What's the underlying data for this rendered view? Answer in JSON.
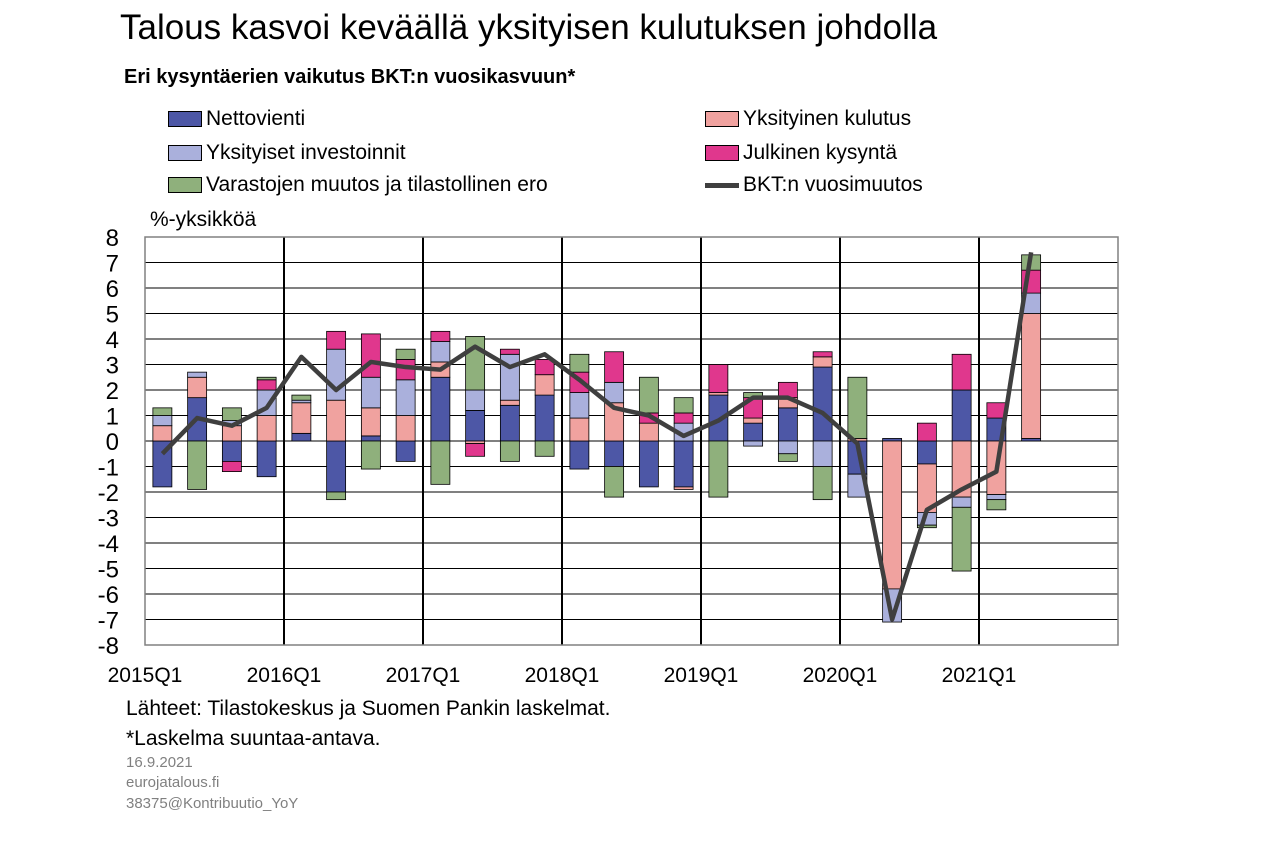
{
  "title": "Talous kasvoi keväällä yksityisen kulutuksen johdolla",
  "subtitle": "Eri kysyntäerien vaikutus BKT:n vuosikasvuun*",
  "colors": {
    "net_exports": "#4d57a6",
    "private_investment": "#aab0dc",
    "inventories": "#8fb07c",
    "private_consumption": "#f0a29f",
    "public_demand": "#e0378d",
    "gdp": "#3f3f3f"
  },
  "footnotes": {
    "sources": "Lähteet: Tilastokeskus ja Suomen Pankin laskelmat.",
    "note": "*Laskelma suuntaa-antava.",
    "date": "16.9.2021",
    "site": "eurojatalous.fi",
    "code": "38375@Kontribuutio_YoY"
  },
  "chart_data": {
    "type": "bar",
    "stacked": true,
    "ylabel": "%-yksikköä",
    "ylim": [
      -8,
      8
    ],
    "yticks": [
      8,
      7,
      6,
      5,
      4,
      3,
      2,
      1,
      0,
      -1,
      -2,
      -3,
      -4,
      -5,
      -6,
      -7,
      -8
    ],
    "x_tick_labels": [
      "2015Q1",
      "2016Q1",
      "2017Q1",
      "2018Q1",
      "2019Q1",
      "2020Q1",
      "2021Q1"
    ],
    "grid": true,
    "legend_position": "top",
    "categories": [
      "2015Q1",
      "2015Q2",
      "2015Q3",
      "2015Q4",
      "2016Q1",
      "2016Q2",
      "2016Q3",
      "2016Q4",
      "2017Q1",
      "2017Q2",
      "2017Q3",
      "2017Q4",
      "2018Q1",
      "2018Q2",
      "2018Q3",
      "2018Q4",
      "2019Q1",
      "2019Q2",
      "2019Q3",
      "2019Q4",
      "2020Q1",
      "2020Q2",
      "2020Q3",
      "2020Q4",
      "2021Q1",
      "2021Q2"
    ],
    "series": [
      {
        "name": "Nettovienti",
        "key": "net_exports",
        "values": [
          -1.8,
          1.7,
          -0.8,
          -1.4,
          0.3,
          -2.0,
          0.2,
          -0.8,
          2.5,
          1.2,
          1.4,
          1.8,
          -1.1,
          -1.0,
          -1.8,
          -1.8,
          1.8,
          0.7,
          1.3,
          2.9,
          -1.3,
          0.1,
          -0.9,
          2.0,
          0.9,
          0.1
        ]
      },
      {
        "name": "Yksityinen kulutus",
        "key": "private_consumption",
        "values": [
          0.6,
          0.8,
          0.6,
          1.0,
          1.2,
          1.6,
          1.1,
          1.0,
          0.6,
          -0.1,
          0.2,
          0.8,
          0.9,
          1.5,
          0.7,
          -0.1,
          0.1,
          0.2,
          0.4,
          0.4,
          0.1,
          -5.8,
          -1.9,
          -2.2,
          -2.1,
          4.9
        ]
      },
      {
        "name": "Yksityiset investoinnit",
        "key": "private_investment",
        "values": [
          0.4,
          0.2,
          0.2,
          1.0,
          0.1,
          2.0,
          1.2,
          1.4,
          0.8,
          0.8,
          1.8,
          0.0,
          1.0,
          0.8,
          0.0,
          0.7,
          0.0,
          -0.2,
          -0.5,
          -1.0,
          -0.9,
          -1.3,
          -0.5,
          -0.4,
          -0.2,
          0.8
        ]
      },
      {
        "name": "Julkinen kysyntä",
        "key": "public_demand",
        "values": [
          0.0,
          0.0,
          -0.4,
          0.4,
          0.0,
          0.7,
          1.7,
          0.8,
          0.4,
          -0.5,
          0.2,
          0.6,
          0.8,
          1.2,
          0.4,
          0.4,
          1.1,
          0.8,
          0.6,
          0.2,
          0.0,
          0.0,
          0.7,
          1.4,
          0.6,
          0.9
        ]
      },
      {
        "name": "Varastojen muutos ja tilastollinen ero",
        "key": "inventories",
        "values": [
          0.3,
          -1.9,
          0.5,
          0.1,
          0.2,
          -0.3,
          -1.1,
          0.4,
          -1.7,
          2.1,
          -0.8,
          -0.6,
          0.7,
          -1.2,
          1.4,
          0.6,
          -2.2,
          0.2,
          -0.3,
          -1.3,
          2.4,
          0.0,
          -0.1,
          -2.5,
          -0.4,
          0.6
        ]
      }
    ],
    "line": {
      "name": "BKT:n vuosimuutos",
      "key": "gdp",
      "values": [
        -0.5,
        0.9,
        0.6,
        1.3,
        3.3,
        2.0,
        3.1,
        2.9,
        2.8,
        3.7,
        2.9,
        3.4,
        2.4,
        1.3,
        1.0,
        0.2,
        0.8,
        1.7,
        1.7,
        1.1,
        -0.1,
        -7.0,
        -2.7,
        -1.9,
        -1.2,
        7.4
      ]
    }
  }
}
